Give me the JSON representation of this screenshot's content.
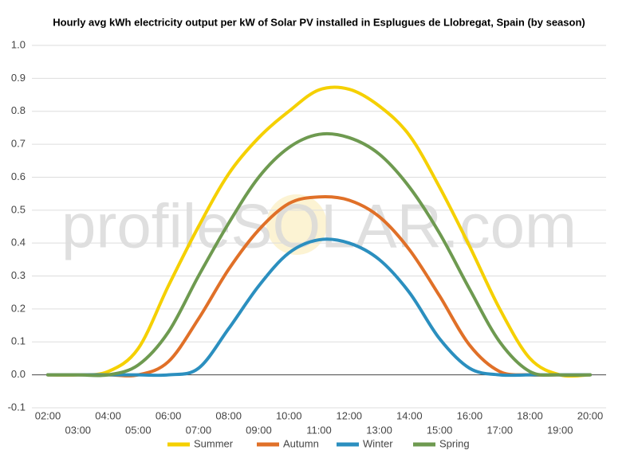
{
  "chart_data": {
    "type": "line",
    "title": "Hourly avg kWh electricity output per kW of Solar PV installed in Esplugues de Llobregat, Spain (by season)",
    "watermark": "profileSOLAR.com",
    "categories": [
      "02:00",
      "03:00",
      "04:00",
      "05:00",
      "06:00",
      "07:00",
      "08:00",
      "09:00",
      "10:00",
      "11:00",
      "12:00",
      "13:00",
      "14:00",
      "15:00",
      "16:00",
      "17:00",
      "18:00",
      "19:00",
      "20:00"
    ],
    "series": [
      {
        "name": "Summer",
        "color": "#f5d000",
        "values": [
          0,
          0,
          0.01,
          0.08,
          0.27,
          0.45,
          0.61,
          0.72,
          0.8,
          0.865,
          0.867,
          0.816,
          0.727,
          0.57,
          0.39,
          0.2,
          0.05,
          0,
          0
        ]
      },
      {
        "name": "Autumn",
        "color": "#e07028",
        "values": [
          0,
          0,
          0,
          0,
          0.04,
          0.17,
          0.32,
          0.44,
          0.52,
          0.54,
          0.53,
          0.48,
          0.38,
          0.24,
          0.09,
          0.01,
          0,
          0,
          0
        ]
      },
      {
        "name": "Winter",
        "color": "#2b8fbf",
        "values": [
          0,
          0,
          0,
          0,
          0,
          0.02,
          0.14,
          0.27,
          0.37,
          0.41,
          0.4,
          0.35,
          0.25,
          0.11,
          0.02,
          0,
          0,
          0,
          0
        ]
      },
      {
        "name": "Spring",
        "color": "#6e9a50",
        "values": [
          0,
          0,
          0,
          0.03,
          0.13,
          0.3,
          0.46,
          0.6,
          0.69,
          0.73,
          0.72,
          0.67,
          0.57,
          0.43,
          0.26,
          0.1,
          0.01,
          0,
          0
        ]
      }
    ],
    "ylim": [
      -0.1,
      1.0
    ],
    "yticks": [
      -0.1,
      {
        "value": 0,
        "label": "0.0"
      },
      0.1,
      0.2,
      0.3,
      0.4,
      0.5,
      0.6,
      0.7,
      0.8,
      0.9,
      {
        "value": 1,
        "label": "1.0"
      }
    ],
    "grid": true,
    "legend": "bottom"
  }
}
